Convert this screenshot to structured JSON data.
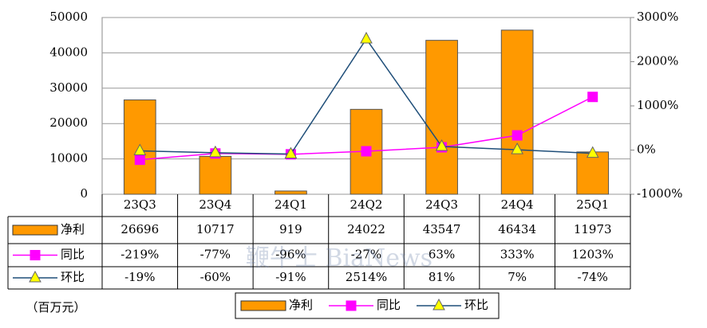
{
  "chart_data": {
    "type": "bar",
    "categories": [
      "23Q3",
      "23Q4",
      "24Q1",
      "24Q2",
      "24Q3",
      "24Q4",
      "25Q1"
    ],
    "series": [
      {
        "name": "净利",
        "type": "bar",
        "color": "#FF9900",
        "values": [
          26696,
          10717,
          919,
          24022,
          43547,
          46434,
          11973
        ]
      },
      {
        "name": "同比",
        "type": "line",
        "axis": "y2",
        "color": "#FF00FF",
        "marker": "square",
        "marker_color": "#FF00FF",
        "values": [
          -219,
          -77,
          -96,
          -27,
          63,
          333,
          1203
        ],
        "value_labels": [
          "-219%",
          "-77%",
          "-96%",
          "-27%",
          "63%",
          "333%",
          "1203%"
        ]
      },
      {
        "name": "环比",
        "type": "line",
        "axis": "y2",
        "color": "#1F4E79",
        "marker": "triangle",
        "marker_color": "#FFFF00",
        "values": [
          -19,
          -60,
          -91,
          2514,
          81,
          7,
          -74
        ],
        "value_labels": [
          "-19%",
          "-60%",
          "-91%",
          "2514%",
          "81%",
          "7%",
          "-74%"
        ]
      }
    ],
    "ylim": [
      0,
      50000
    ],
    "yticks": [
      0,
      10000,
      20000,
      30000,
      40000,
      50000
    ],
    "y2lim": [
      -1000,
      3000
    ],
    "y2ticks": [
      {
        "value": -1000,
        "label": "-1000%"
      },
      {
        "value": 0,
        "label": "0%"
      },
      {
        "value": 1000,
        "label": "1000%"
      },
      {
        "value": 2000,
        "label": "2000%"
      },
      {
        "value": 3000,
        "label": "3000%"
      }
    ],
    "grid": true,
    "legend": "bottom",
    "unit_label": "（百万元）",
    "watermark": "鞭牛士 BiaNews"
  }
}
